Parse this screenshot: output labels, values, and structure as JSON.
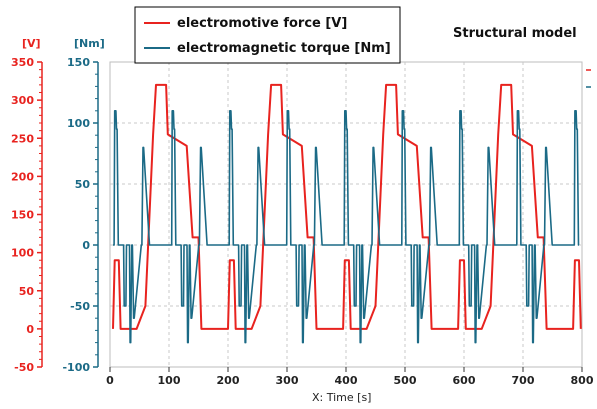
{
  "chart_data": {
    "type": "line",
    "title": "Structural model",
    "xlabel": "X: Time [s]",
    "xlim": [
      0,
      800
    ],
    "x_ticks": [
      0,
      100,
      200,
      300,
      400,
      500,
      600,
      700,
      800
    ],
    "left_axis_red": {
      "unit": "[V]",
      "ylim": [
        -50,
        350
      ],
      "ticks": [
        -50,
        0,
        50,
        100,
        150,
        200,
        250,
        300,
        350
      ],
      "color": "#e8231f"
    },
    "left_axis_blue": {
      "unit": "[Nm]",
      "ylim": [
        -100,
        150
      ],
      "ticks": [
        -100,
        -50,
        0,
        50,
        100,
        150
      ],
      "color": "#1b6a86"
    },
    "grid": true,
    "legend_position": "top-center",
    "series": [
      {
        "name": "electromotive force [V]",
        "axis": "V",
        "color": "#e8231f",
        "period_s": 195,
        "shape_x_offsets": [
          0,
          10,
          13,
          20,
          23,
          45,
          50,
          65,
          78,
          83,
          100,
          103,
          135,
          145,
          155,
          160,
          175,
          180,
          195
        ],
        "shape_y": [
          0,
          0,
          90,
          90,
          0,
          0,
          0,
          30,
          255,
          320,
          320,
          255,
          240,
          120,
          120,
          0,
          0,
          0,
          0
        ],
        "start_offset_s": -5
      },
      {
        "name": "electromagnetic torque [Nm]",
        "axis": "Nm",
        "color": "#1b6a86",
        "period_s": 97.5,
        "shape_x_offsets": [
          0,
          2,
          3,
          5,
          6,
          7,
          9,
          10,
          18,
          19,
          22,
          23,
          28,
          29,
          30,
          32,
          33,
          35,
          36,
          48,
          49,
          51,
          52,
          62,
          63,
          65,
          66,
          97.5
        ],
        "shape_y": [
          0,
          0,
          110,
          110,
          95,
          95,
          0,
          0,
          0,
          -50,
          -50,
          0,
          0,
          -80,
          -80,
          0,
          0,
          -60,
          -60,
          0,
          0,
          80,
          80,
          0,
          0,
          0,
          0,
          0
        ],
        "start_offset_s": 5
      }
    ]
  }
}
